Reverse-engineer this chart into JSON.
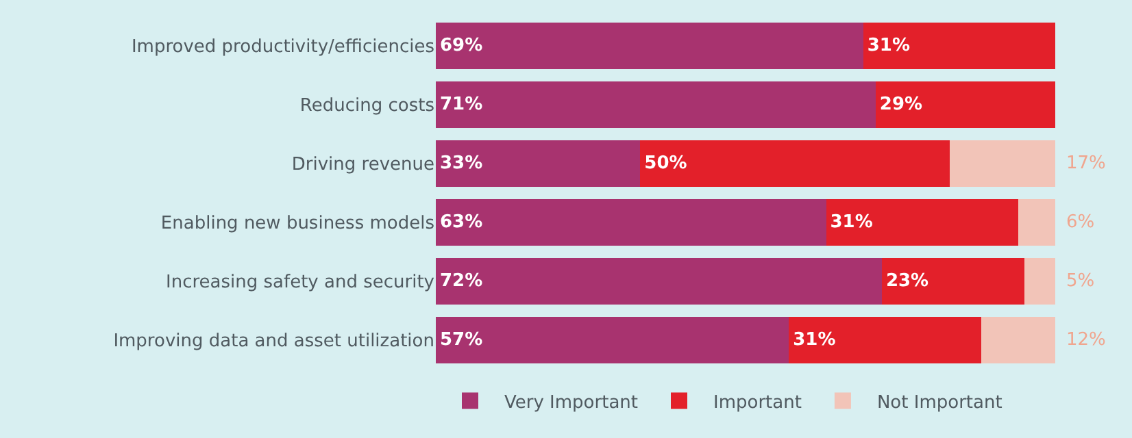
{
  "chart_data": {
    "type": "bar",
    "orientation": "horizontal",
    "stacked": true,
    "categories": [
      "Improved productivity/efficiencies",
      "Reducing costs",
      "Driving revenue",
      "Enabling new business models",
      "Increasing safety and security",
      "Improving data and asset utilization"
    ],
    "xlim": [
      0,
      100
    ],
    "tick_labels": "y",
    "legend": "bottom",
    "series": [
      {
        "name": "Very Important",
        "color": "#a8336f",
        "values": [
          69,
          71,
          33,
          63,
          72,
          57
        ],
        "value_labels": [
          "69%",
          "71%",
          "33%",
          "63%",
          "72%",
          "57%"
        ]
      },
      {
        "name": "Important",
        "color": "#e3202a",
        "values": [
          31,
          29,
          50,
          31,
          23,
          31
        ],
        "value_labels": [
          "31%",
          "29%",
          "50%",
          "31%",
          "23%",
          "31%"
        ]
      },
      {
        "name": "Not Important",
        "color": "#f2c4b8",
        "values": [
          null,
          null,
          17,
          6,
          5,
          12
        ],
        "value_labels": [
          null,
          null,
          "17%",
          "6%",
          "5%",
          "12%"
        ]
      }
    ]
  }
}
